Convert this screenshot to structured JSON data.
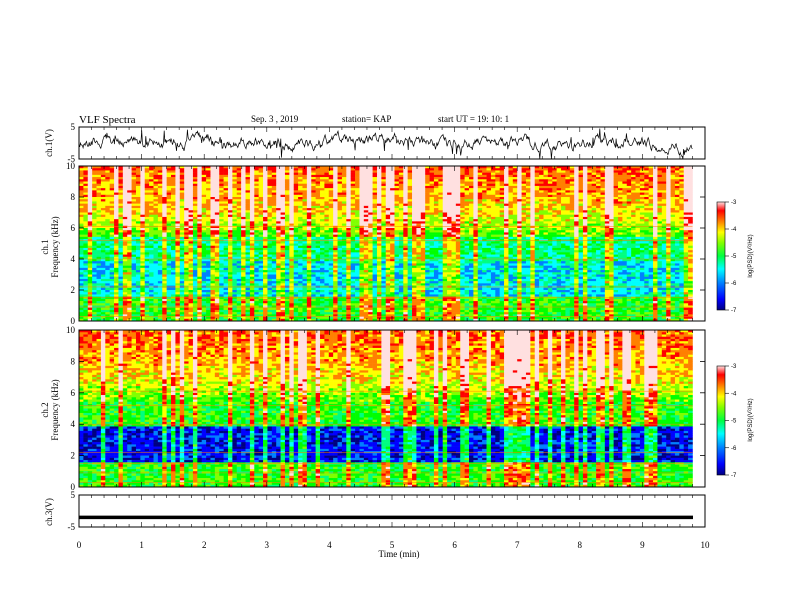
{
  "header": {
    "title": "VLF Spectra",
    "date": "Sep. 3 , 2019",
    "station": "station= KAP",
    "start": "start UT =  19: 10: 1"
  },
  "chart_data": [
    {
      "type": "line",
      "panel": "ch1-waveform",
      "ylabel": "ch.1(V)",
      "ylim": [
        -5,
        5
      ],
      "yticks": [
        "5",
        "-5"
      ],
      "xlim": [
        0,
        10
      ],
      "series": [
        {
          "values": []
        }
      ]
    },
    {
      "type": "heatmap",
      "panel": "ch1-spectrogram",
      "ylabel": "ch.1\nFrequency (kHz)",
      "ylim": [
        0,
        10
      ],
      "yticks": [
        "0",
        "2",
        "4",
        "6",
        "8",
        "10"
      ],
      "xlim": [
        0,
        10
      ],
      "data_end_min": 9.8,
      "colorbar": {
        "label": "log(PSD)(V²/Hz)",
        "range": [
          -7,
          -3
        ],
        "ticks": [
          "-3",
          "-4",
          "-5",
          "-6",
          "-7"
        ]
      }
    },
    {
      "type": "heatmap",
      "panel": "ch2-spectrogram",
      "ylabel": "ch.2\nFrequency (kHz)",
      "ylim": [
        0,
        10
      ],
      "yticks": [
        "0",
        "2",
        "4",
        "6",
        "8",
        "10"
      ],
      "xlim": [
        0,
        10
      ],
      "data_end_min": 9.8,
      "colorbar": {
        "label": "log(PSD)(V²/Hz)",
        "range": [
          -7,
          -3
        ],
        "ticks": [
          "-3",
          "-4",
          "-5",
          "-6",
          "-7"
        ]
      }
    },
    {
      "type": "line",
      "panel": "ch3-waveform",
      "ylabel": "ch.3(V)",
      "ylim": [
        -5,
        5
      ],
      "yticks": [
        "5",
        "-5"
      ],
      "xlim": [
        0,
        10
      ],
      "xlabel": "Time (min)",
      "xticks": [
        "0",
        "1",
        "2",
        "3",
        "4",
        "5",
        "6",
        "7",
        "8",
        "9",
        "10"
      ],
      "series": [
        {
          "values": [
            -2,
            -2
          ]
        }
      ]
    }
  ],
  "colors": {
    "colormap": [
      "#000080",
      "#0000ff",
      "#0080ff",
      "#00ffff",
      "#00ff80",
      "#00ff00",
      "#80ff00",
      "#ffff00",
      "#ff8000",
      "#ff0000",
      "#ffe0e0"
    ],
    "axis": "#000000",
    "trace": "#000000"
  }
}
